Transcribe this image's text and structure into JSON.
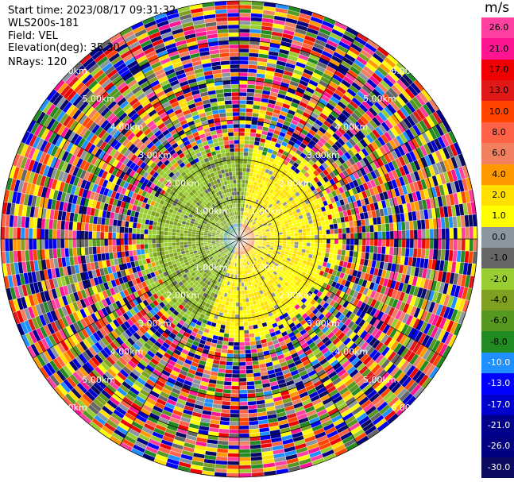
{
  "header": {
    "start_time": "Start time: 2023/08/17 09:31:32",
    "instrument": "WLS200s-181",
    "field": "Field: VEL",
    "elevation": "Elevation(deg): 35.30",
    "nrays": "NRays: 120"
  },
  "colorbar": {
    "unit": "m/s",
    "bins": [
      {
        "label": "26.0",
        "color": "#ff40a0"
      },
      {
        "label": "21.0",
        "color": "#ff1493"
      },
      {
        "label": "17.0",
        "color": "#f00000"
      },
      {
        "label": "13.0",
        "color": "#e01818"
      },
      {
        "label": "10.0",
        "color": "#ff4500"
      },
      {
        "label": "8.0",
        "color": "#ff6347"
      },
      {
        "label": "6.0",
        "color": "#f08060"
      },
      {
        "label": "4.0",
        "color": "#ff9900"
      },
      {
        "label": "2.0",
        "color": "#ffe000"
      },
      {
        "label": "1.0",
        "color": "#ffff00"
      },
      {
        "label": "0.0",
        "color": "#8a96a0"
      },
      {
        "label": "-1.0",
        "color": "#666666"
      },
      {
        "label": "-2.0",
        "color": "#9acd32"
      },
      {
        "label": "-4.0",
        "color": "#7fa020"
      },
      {
        "label": "-6.0",
        "color": "#559922"
      },
      {
        "label": "-8.0",
        "color": "#228b22"
      },
      {
        "label": "-10.0",
        "color": "#1e90ff"
      },
      {
        "label": "-13.0",
        "color": "#0000ff"
      },
      {
        "label": "-17.0",
        "color": "#0000cd"
      },
      {
        "label": "-21.0",
        "color": "#00008b"
      },
      {
        "label": "-26.0",
        "color": "#000080"
      },
      {
        "label": "-30.0",
        "color": "#0a0a60"
      }
    ]
  },
  "chart_data": {
    "type": "heatmap",
    "projection": "polar-ppi",
    "field": "VEL",
    "rings": [
      {
        "range_km": 1.0,
        "label": "1.00km"
      },
      {
        "range_km": 2.0,
        "label": "2.00km"
      },
      {
        "range_km": 3.0,
        "label": "3.00km"
      },
      {
        "range_km": 4.0,
        "label": "4.00km"
      },
      {
        "range_km": 5.0,
        "label": "5.00km"
      },
      {
        "range_km": 6.0,
        "label": "6.00km"
      }
    ],
    "max_range_km": 6.0,
    "nrays": 120,
    "ring_label_bearings_deg": [
      45,
      135,
      225,
      315
    ],
    "velocity_pattern": {
      "positive_sector_deg": [
        10,
        200
      ],
      "negative_sector_deg": [
        200,
        360
      ],
      "coherent_max_range_km": 2.2,
      "noise_start_range_km": 2.6
    }
  }
}
